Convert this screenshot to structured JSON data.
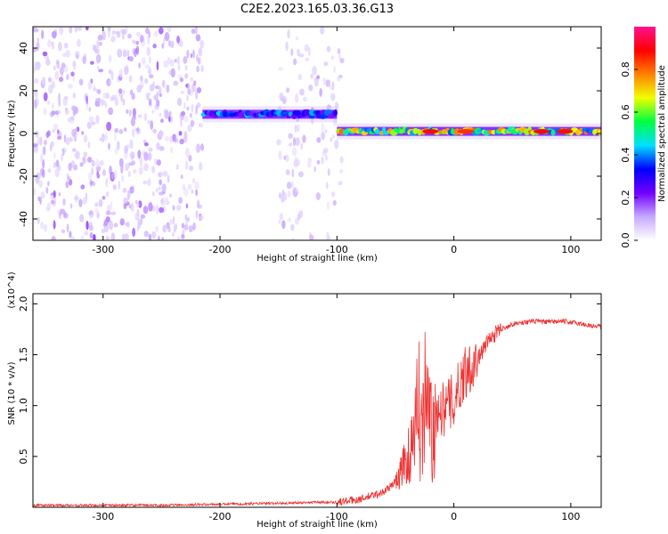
{
  "title": "C2E2.2023.165.03.36.G13",
  "chart_data": [
    {
      "type": "heatmap",
      "name": "spectrogram",
      "xlabel": "Height of straight line (km)",
      "ylabel": "Frequency (Hz)",
      "xlim": [
        -360,
        126
      ],
      "ylim": [
        -50,
        50
      ],
      "xticks": [
        -300,
        -200,
        -100,
        0,
        100
      ],
      "yticks": [
        -40,
        -20,
        0,
        20,
        40
      ],
      "colorbar": {
        "label": "Normalized spectral amplitude",
        "range": [
          0,
          1
        ],
        "ticks": [
          0.0,
          0.2,
          0.4,
          0.6,
          0.8
        ],
        "colors": [
          "#ffffff",
          "#c8a8ff",
          "#7000ff",
          "#0000ff",
          "#00e0ff",
          "#00ff40",
          "#f0ff00",
          "#ff8000",
          "#ff0000",
          "#ff1090"
        ]
      },
      "regions": [
        {
          "description": "broadband noise",
          "x_range": [
            -360,
            -215
          ],
          "f_range": [
            -50,
            50
          ],
          "amplitude": 0.05
        },
        {
          "description": "broadband noise",
          "x_range": [
            -150,
            -95
          ],
          "f_range": [
            -50,
            50
          ],
          "amplitude": 0.03
        },
        {
          "description": "signal ridge",
          "x_range": [
            -215,
            -100
          ],
          "f_center": 9,
          "amplitude": 0.45
        },
        {
          "description": "signal ridge",
          "x_range": [
            -100,
            126
          ],
          "f_center": 1,
          "amplitude": 0.8
        }
      ]
    },
    {
      "type": "line",
      "name": "snr",
      "xlabel": "Height of straight line (km)",
      "ylabel": "SNR (10 * v/v)",
      "y_multiplier": "(x10^4)",
      "xlim": [
        -360,
        126
      ],
      "ylim": [
        0,
        2.1
      ],
      "xticks": [
        -300,
        -200,
        -100,
        0,
        100
      ],
      "yticks": [
        0.5,
        1.0,
        1.5,
        2.0
      ],
      "color": "#ee3333",
      "series": [
        {
          "name": "SNR",
          "x": [
            -360,
            -300,
            -250,
            -200,
            -150,
            -120,
            -100,
            -80,
            -60,
            -50,
            -45,
            -40,
            -35,
            -30,
            -25,
            -22,
            -20,
            -18,
            -15,
            -10,
            -5,
            0,
            5,
            10,
            15,
            20,
            25,
            30,
            40,
            50,
            60,
            70,
            80,
            90,
            100,
            110,
            120,
            126
          ],
          "y": [
            0.02,
            0.02,
            0.02,
            0.03,
            0.04,
            0.05,
            0.05,
            0.08,
            0.15,
            0.25,
            0.35,
            0.5,
            0.55,
            0.7,
            0.8,
            0.9,
            0.85,
            0.6,
            0.95,
            0.95,
            1.0,
            1.05,
            1.2,
            1.35,
            1.4,
            1.45,
            1.55,
            1.65,
            1.75,
            1.8,
            1.82,
            1.83,
            1.82,
            1.83,
            1.82,
            1.8,
            1.78,
            1.78
          ]
        }
      ]
    }
  ]
}
